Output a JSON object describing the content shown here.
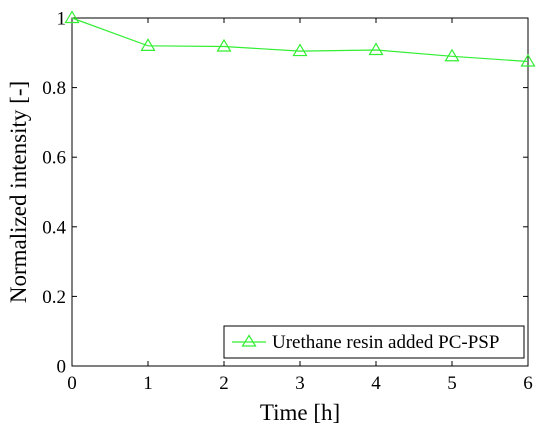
{
  "chart_data": {
    "type": "line",
    "xlabel": "Time [h]",
    "ylabel": "Normalized intensity [-]",
    "xlim": [
      0,
      6
    ],
    "ylim": [
      0,
      1
    ],
    "xticks": [
      0,
      1,
      2,
      3,
      4,
      5,
      6
    ],
    "yticks": [
      0,
      0.2,
      0.4,
      0.6,
      0.8,
      1
    ],
    "xtick_labels": [
      "0",
      "1",
      "2",
      "3",
      "4",
      "5",
      "6"
    ],
    "ytick_labels": [
      "0",
      "0.2",
      "0.4",
      "0.6",
      "0.8",
      "1"
    ],
    "grid": false,
    "legend_position": "bottom-right",
    "series": [
      {
        "name": "Urethane resin added PC-PSP",
        "color": "#33ee33",
        "marker": "triangle",
        "x": [
          0,
          1,
          2,
          3,
          4,
          5,
          6
        ],
        "y": [
          1.0,
          0.92,
          0.918,
          0.905,
          0.908,
          0.89,
          0.875
        ]
      }
    ]
  }
}
